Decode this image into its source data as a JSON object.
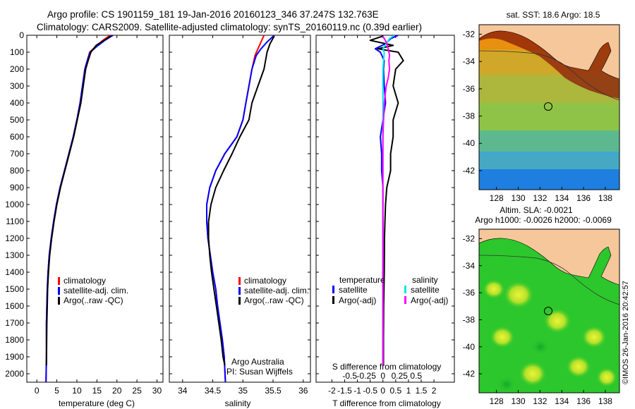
{
  "header": {
    "line1": "Argo profile: CS 1901159_181 19-Jan-2016 20160123_346 37.247S 132.763E",
    "line2": "Climatology: CARS2009. Satellite-adjusted climatology: synTS_20160119.nc (0.39d earlier)"
  },
  "colors": {
    "climatology": "#ff0000",
    "satellite": "#0000ff",
    "argo": "#000000",
    "satellite_salinity": "#00e5e5",
    "argo_salinity": "#ff00ff",
    "land": "#f6c79b"
  },
  "depth_axis": {
    "ticks": [
      "0",
      "100",
      "200",
      "300",
      "400",
      "500",
      "600",
      "700",
      "800",
      "900",
      "1000",
      "1100",
      "1200",
      "1300",
      "1400",
      "1500",
      "1600",
      "1700",
      "1800",
      "1900",
      "2000"
    ]
  },
  "legend": {
    "climatology": "climatology",
    "satellite_adj": "satellite-adj. clim.",
    "argo_raw": "Argo(..raw -QC)",
    "temperature": "temperature",
    "salinity": "salinity",
    "satellite": "satellite",
    "argo_adj": "Argo(-adj)"
  },
  "notes": {
    "line1": "Argo Australia",
    "line2": "PI: Susan Wijffels"
  },
  "map_top": {
    "title": "sat. SST: 18.6 Argo: 18.5",
    "yticks": [
      "-32",
      "-34",
      "-36",
      "-38",
      "-40",
      "-42"
    ],
    "xticks": [
      "128",
      "130",
      "132",
      "134",
      "136",
      "138"
    ]
  },
  "map_bottom": {
    "title1": "Altim. SLA: -0.0021",
    "title2": "Argo h1000: -0.0026 h2000: -0.0069",
    "yticks": [
      "-32",
      "-34",
      "-36",
      "-38",
      "-40",
      "-42"
    ],
    "xticks": [
      "128",
      "130",
      "132",
      "134",
      "136",
      "138"
    ]
  },
  "watermark": "©IMOS 26-Jan-2016 20:42:57",
  "chart_data": [
    {
      "type": "line",
      "id": "temperature",
      "xlabel": "temperature (deg C)",
      "xticks": [
        "0",
        "5",
        "10",
        "15",
        "20",
        "25",
        "30"
      ],
      "xlim": [
        -2.5,
        31.5
      ],
      "ylim": [
        2050,
        0
      ],
      "series": [
        {
          "name": "climatology",
          "x": [
            18.3,
            16.5,
            15.0,
            13.2,
            12.6,
            12.0,
            11.4,
            10.8,
            10.0,
            9.1,
            8.0,
            6.9,
            5.8,
            4.9,
            4.2,
            3.6,
            3.1,
            2.8,
            2.6,
            2.5,
            2.4,
            2.4,
            2.3
          ],
          "y": [
            0,
            30,
            60,
            100,
            150,
            200,
            300,
            400,
            500,
            600,
            700,
            800,
            900,
            1000,
            1100,
            1200,
            1300,
            1400,
            1500,
            1600,
            1700,
            1900,
            2050
          ]
        },
        {
          "name": "satellite-adj. clim.",
          "x": [
            19.0,
            17.0,
            15.3,
            13.3,
            12.6,
            12.0,
            11.4,
            10.8,
            10.0,
            9.1,
            8.0,
            6.9,
            5.8,
            4.9,
            4.2,
            3.6,
            3.1,
            2.8,
            2.6,
            2.5,
            2.4,
            2.4,
            2.3
          ],
          "y": [
            0,
            30,
            60,
            100,
            150,
            200,
            300,
            400,
            500,
            600,
            700,
            800,
            900,
            1000,
            1100,
            1200,
            1300,
            1400,
            1500,
            1600,
            1700,
            1900,
            2050
          ]
        },
        {
          "name": "Argo(..raw -QC)",
          "x": [
            18.5,
            16.8,
            14.8,
            13.5,
            12.8,
            12.2,
            11.6,
            11.0,
            10.1,
            9.2,
            8.1,
            7.0,
            5.9,
            5.0,
            4.3,
            3.7,
            3.2,
            2.9,
            2.7,
            2.6,
            2.5,
            2.4
          ],
          "y": [
            5,
            30,
            60,
            100,
            150,
            200,
            300,
            400,
            500,
            600,
            700,
            800,
            900,
            1000,
            1100,
            1200,
            1300,
            1400,
            1500,
            1600,
            1700,
            1950
          ]
        }
      ]
    },
    {
      "type": "line",
      "id": "salinity",
      "xlabel": "salinity",
      "xticks": [
        "34",
        "34.5",
        "35",
        "35.5",
        "36"
      ],
      "xlim": [
        33.78,
        36.12
      ],
      "ylim": [
        2050,
        0
      ],
      "series": [
        {
          "name": "climatology",
          "x": [
            35.35,
            35.3,
            35.25,
            35.2,
            35.15,
            35.1,
            35.05,
            35.0,
            34.9,
            34.8,
            34.7,
            34.55,
            34.45,
            34.4,
            34.4,
            34.42,
            34.46,
            34.5,
            34.55,
            34.58,
            34.62,
            34.66,
            34.69,
            34.71
          ],
          "y": [
            0,
            40,
            80,
            120,
            200,
            300,
            400,
            500,
            600,
            650,
            700,
            800,
            900,
            1000,
            1100,
            1200,
            1300,
            1400,
            1500,
            1600,
            1700,
            1800,
            1900,
            2050
          ]
        },
        {
          "name": "satellite-adj. clim.",
          "x": [
            35.52,
            35.4,
            35.3,
            35.22,
            35.15,
            35.1,
            35.05,
            35.0,
            34.9,
            34.8,
            34.7,
            34.55,
            34.45,
            34.4,
            34.4,
            34.42,
            34.46,
            34.5,
            34.55,
            34.58,
            34.62,
            34.66,
            34.69,
            34.71
          ],
          "y": [
            0,
            40,
            80,
            120,
            200,
            300,
            400,
            500,
            600,
            650,
            700,
            800,
            900,
            1000,
            1100,
            1200,
            1300,
            1400,
            1500,
            1600,
            1700,
            1800,
            1900,
            2050
          ]
        },
        {
          "name": "Argo(..raw -QC)",
          "x": [
            35.52,
            35.45,
            35.4,
            35.35,
            35.25,
            35.15,
            35.1,
            34.95,
            34.82,
            34.68,
            34.55,
            34.47,
            34.43,
            34.43,
            34.45,
            34.48,
            34.52,
            34.56,
            34.6,
            34.64,
            34.67,
            34.7
          ],
          "y": [
            5,
            50,
            100,
            200,
            300,
            400,
            500,
            600,
            700,
            800,
            900,
            1000,
            1100,
            1200,
            1300,
            1400,
            1500,
            1600,
            1700,
            1800,
            1900,
            1950
          ]
        }
      ]
    },
    {
      "type": "line",
      "id": "difference",
      "xlabel": "T difference from climatology",
      "xlabel_top": "S difference from climatology",
      "xticks": [
        "-2",
        "-1.5",
        "-1",
        "-0.5",
        "0",
        "0.5",
        "1",
        "1.5",
        "2"
      ],
      "xticks_top": [
        "-0.5",
        "-0.25",
        "0",
        "0.25",
        "0.5"
      ],
      "xlim": [
        -2.62,
        2.8
      ],
      "ylim": [
        2050,
        0
      ],
      "series": [
        {
          "name": "temperature satellite",
          "x": [
            0.6,
            0.3,
            0.1,
            -0.3,
            -0.1,
            0.05,
            0.02,
            0.05,
            0.1,
            0.0,
            -0.1,
            -0.05,
            -0.05,
            0.0,
            0.0,
            0.0,
            0.0,
            0.0,
            0.0
          ],
          "y": [
            0,
            20,
            50,
            80,
            100,
            150,
            200,
            300,
            400,
            500,
            600,
            700,
            800,
            900,
            1000,
            1200,
            1500,
            1800,
            1950
          ]
        },
        {
          "name": "temperature Argo(-adj)",
          "x": [
            0.0,
            -0.5,
            0.4,
            -0.2,
            0.6,
            0.8,
            0.5,
            0.4,
            0.6,
            0.4,
            0.4,
            0.3,
            0.3,
            0.15,
            0.1,
            0.08,
            0.06,
            0.05,
            0.03,
            0.02,
            0.02
          ],
          "y": [
            5,
            30,
            60,
            80,
            100,
            150,
            200,
            300,
            400,
            500,
            600,
            700,
            800,
            900,
            1000,
            1100,
            1200,
            1400,
            1600,
            1800,
            1950
          ]
        },
        {
          "name": "salinity satellite",
          "x": [
            0.17,
            0.1,
            0.05,
            0.0,
            0.02,
            0.01,
            0.0,
            0.0,
            0.0,
            0.0,
            0.0,
            0.0,
            0.0,
            0.0
          ],
          "y": [
            0,
            20,
            50,
            80,
            100,
            150,
            200,
            300,
            500,
            700,
            900,
            1200,
            1600,
            1950
          ]
        },
        {
          "name": "salinity Argo(-adj)",
          "x": [
            0.0,
            0.05,
            0.08,
            0.1,
            0.09,
            0.1,
            0.08,
            0.05,
            0.02,
            0.0,
            0.0,
            0.0,
            0.0
          ],
          "y": [
            5,
            40,
            80,
            120,
            150,
            200,
            250,
            300,
            400,
            600,
            900,
            1400,
            1950
          ]
        }
      ]
    }
  ]
}
